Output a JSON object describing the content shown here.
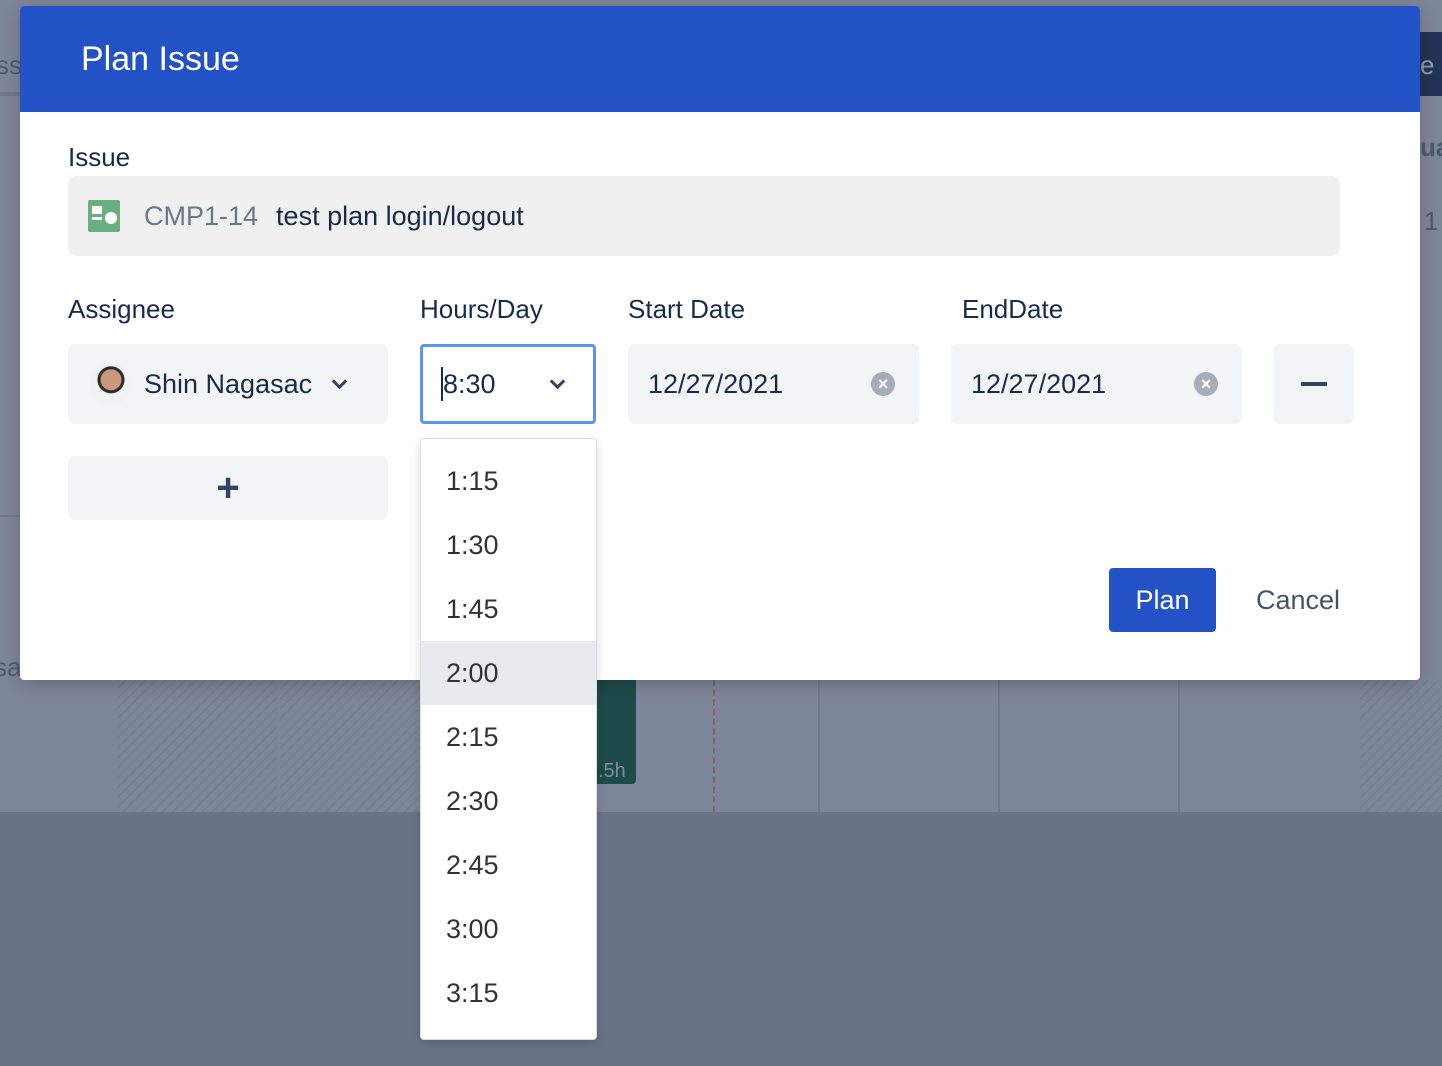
{
  "background": {
    "fragments": [
      "ss",
      "sa",
      "ua",
      "e",
      "1",
      ".5h"
    ]
  },
  "modal": {
    "title": "Plan Issue",
    "issue_label": "Issue",
    "issue": {
      "key": "CMP1-14",
      "summary": "test plan login/logout",
      "icon": "test-plan-icon"
    },
    "labels": {
      "assignee": "Assignee",
      "hours": "Hours/Day",
      "start": "Start Date",
      "end": "EndDate"
    },
    "row": {
      "assignee": "Shin Nagasac",
      "hours": "8:30",
      "start_date": "12/27/2021",
      "end_date": "12/27/2021"
    },
    "remove_icon": "minus-icon",
    "add_icon": "plus-icon",
    "plan_label": "Plan",
    "cancel_label": "Cancel",
    "accent": "#2351c6"
  },
  "hours_dropdown": {
    "options": [
      "1:15",
      "1:30",
      "1:45",
      "2:00",
      "2:15",
      "2:30",
      "2:45",
      "3:00",
      "3:15"
    ],
    "highlighted": "2:00"
  }
}
